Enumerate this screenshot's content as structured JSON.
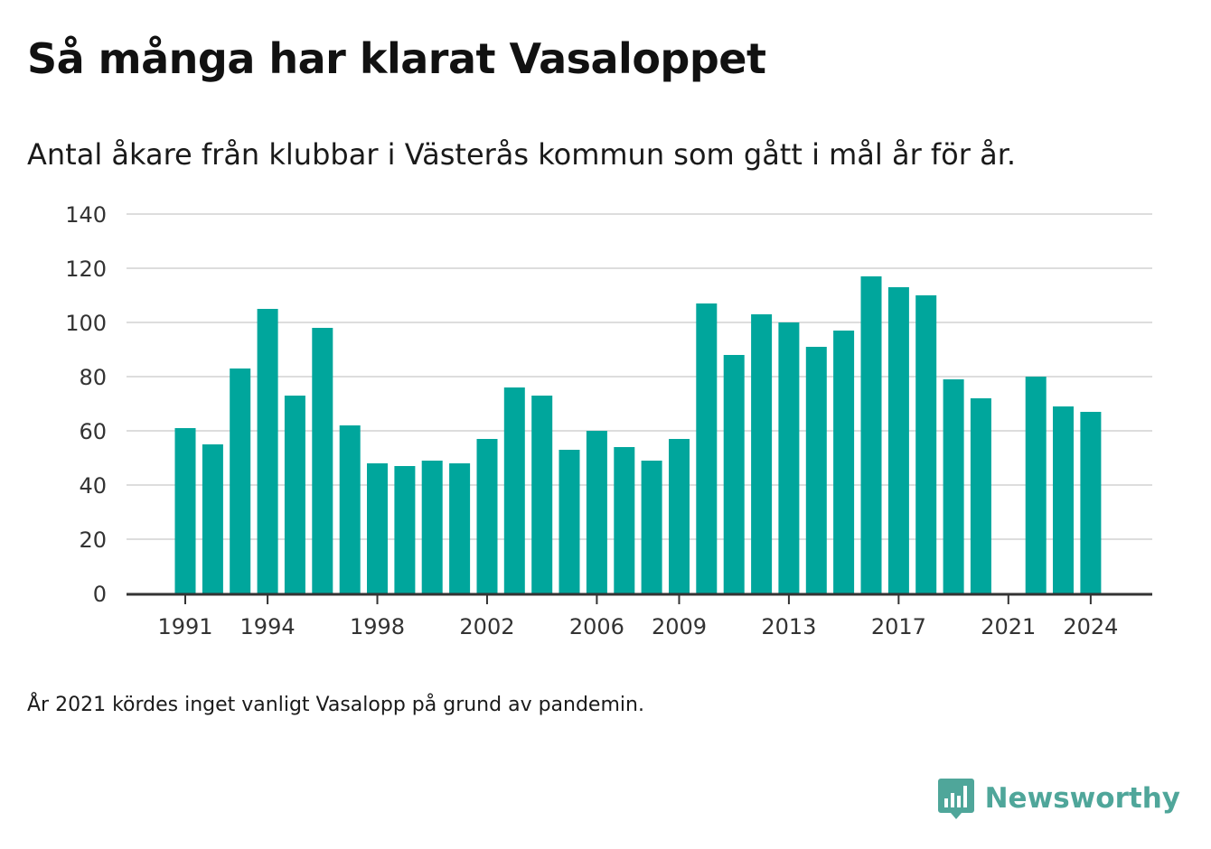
{
  "header": {
    "title": "Så många har klarat Vasaloppet",
    "subtitle": "Antal åkare från klubbar i Västerås kommun som gått i mål år för år."
  },
  "footer": {
    "note": "År 2021 kördes inget vanligt Vasalopp på grund av pandemin.",
    "brand": "Newsworthy",
    "brand_icon": "bar-chart-speech-bubble-icon"
  },
  "colors": {
    "bar": "#00a69c",
    "grid": "#dddddd",
    "axis": "#333333",
    "brand": "#4fa69a"
  },
  "chart_data": {
    "type": "bar",
    "title": "Så många har klarat Vasaloppet",
    "subtitle": "Antal åkare från klubbar i Västerås kommun som gått i mål år för år.",
    "xlabel": "",
    "ylabel": "",
    "ylim": [
      0,
      140
    ],
    "yticks": [
      0,
      20,
      40,
      60,
      80,
      100,
      120,
      140
    ],
    "xtick_labels": [
      "1991",
      "1994",
      "1998",
      "2002",
      "2006",
      "2009",
      "2013",
      "2017",
      "2021",
      "2024"
    ],
    "grid": true,
    "categories": [
      1991,
      1992,
      1993,
      1994,
      1995,
      1996,
      1997,
      1998,
      1999,
      2000,
      2001,
      2002,
      2003,
      2004,
      2005,
      2006,
      2007,
      2008,
      2009,
      2010,
      2011,
      2012,
      2013,
      2014,
      2015,
      2016,
      2017,
      2018,
      2019,
      2020,
      2021,
      2022,
      2023,
      2024
    ],
    "values": [
      61,
      55,
      83,
      105,
      73,
      98,
      62,
      48,
      47,
      49,
      48,
      57,
      76,
      73,
      53,
      60,
      54,
      49,
      57,
      107,
      88,
      103,
      100,
      91,
      97,
      117,
      113,
      110,
      79,
      72,
      null,
      80,
      69,
      67
    ]
  }
}
